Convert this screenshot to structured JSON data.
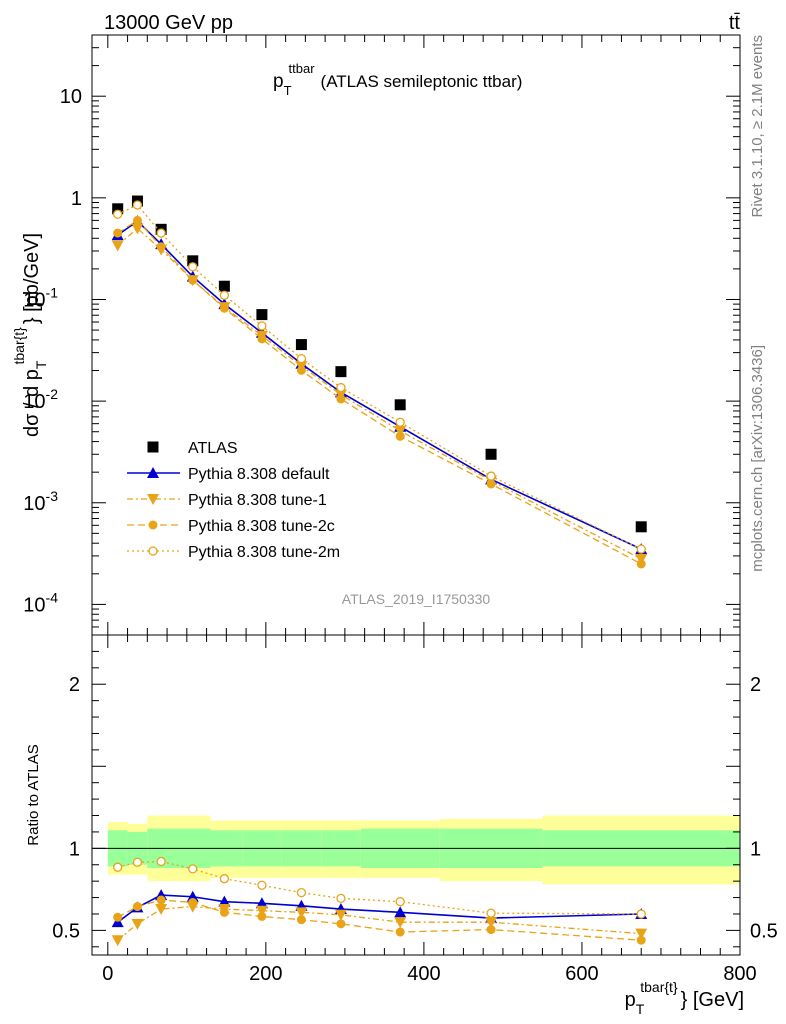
{
  "header": {
    "energy_label": "13000 GeV pp",
    "process_label": "tt̄"
  },
  "title": {
    "main": "p",
    "sub": "T",
    "sup": "ttbar",
    "rest": "(ATLAS semileptonic ttbar)"
  },
  "side_labels": {
    "rivet": "Rivet 3.1.10, ≥ 2.1M events",
    "mcplots": "mcplots.cern.ch [arXiv:1306.3436]"
  },
  "watermark": "ATLAS_2019_I1750330",
  "colors": {
    "data": "#000000",
    "default": "#0000d0",
    "tune": "#e8a317",
    "band_inner": "#99ff99",
    "band_outer": "#ffff99"
  },
  "chart_data": [
    {
      "type": "scatter",
      "panel": "main",
      "ylabel_parts": {
        "a": "dσ / d p",
        "sub": "T",
        "sup": "tbar{t}",
        "b": "} [pb/GeV]"
      },
      "ylabel": "dσ / d pT^tbar{t}} [pb/GeV]",
      "yscale": "log",
      "ylim": [
        5e-05,
        40
      ],
      "xlim": [
        -20,
        800
      ],
      "ytick_labels": [
        "10^-4",
        "10^-3",
        "10^-2",
        "10^-1",
        "1",
        "10"
      ],
      "legend_position": "center-left",
      "x": [
        12.5,
        37.5,
        67.5,
        107.5,
        147.5,
        195,
        245,
        295,
        370,
        485,
        675
      ],
      "series": [
        {
          "name": "ATLAS",
          "style": "data",
          "marker": "square",
          "values": [
            0.78,
            0.93,
            0.49,
            0.24,
            0.135,
            0.071,
            0.036,
            0.0195,
            0.0092,
            0.003,
            0.00058
          ]
        },
        {
          "name": "Pythia 8.308 default",
          "style": "default",
          "marker": "triangle-up",
          "values": [
            0.43,
            0.59,
            0.35,
            0.168,
            0.09,
            0.047,
            0.0233,
            0.0122,
            0.0056,
            0.0017,
            0.00035
          ]
        },
        {
          "name": "Pythia 8.308 tune-1",
          "style": "tune1",
          "marker": "triangle-down",
          "values": [
            0.34,
            0.5,
            0.31,
            0.155,
            0.084,
            0.044,
            0.0221,
            0.0116,
            0.0051,
            0.00165,
            0.00028
          ]
        },
        {
          "name": "Pythia 8.308 tune-2c",
          "style": "tune2c",
          "marker": "circle",
          "values": [
            0.45,
            0.6,
            0.33,
            0.155,
            0.082,
            0.041,
            0.0201,
            0.0105,
            0.0045,
            0.00153,
            0.00025
          ]
        },
        {
          "name": "Pythia 8.308 tune-2m",
          "style": "tune2m",
          "marker": "open-circle",
          "values": [
            0.69,
            0.85,
            0.45,
            0.21,
            0.11,
            0.055,
            0.0262,
            0.0136,
            0.0062,
            0.00183,
            0.00035
          ]
        }
      ]
    },
    {
      "type": "line",
      "panel": "ratio",
      "ylabel": "Ratio to ATLAS",
      "xlabel_parts": {
        "a": "p",
        "sub": "T",
        "sup": "tbar{t}",
        "b": "} [GeV]"
      },
      "xlabel": "pT^tbar{t}} [GeV]",
      "ylim": [
        0.35,
        2.3
      ],
      "xlim": [
        -20,
        800
      ],
      "x_ticks": [
        0,
        200,
        400,
        600,
        800
      ],
      "y_ticks": [
        0.5,
        1,
        2
      ],
      "reference_line": 1,
      "bands": {
        "edges": [
          0,
          25,
          50,
          85,
          130,
          170,
          220,
          270,
          320,
          420,
          550,
          800
        ],
        "inner": [
          [
            0.89,
            1.11
          ],
          [
            0.9,
            1.1
          ],
          [
            0.88,
            1.12
          ],
          [
            0.88,
            1.12
          ],
          [
            0.89,
            1.11
          ],
          [
            0.89,
            1.11
          ],
          [
            0.89,
            1.11
          ],
          [
            0.89,
            1.11
          ],
          [
            0.88,
            1.12
          ],
          [
            0.88,
            1.12
          ],
          [
            0.89,
            1.11
          ]
        ],
        "outer": [
          [
            0.84,
            1.16
          ],
          [
            0.84,
            1.15
          ],
          [
            0.8,
            1.2
          ],
          [
            0.8,
            1.2
          ],
          [
            0.82,
            1.17
          ],
          [
            0.82,
            1.17
          ],
          [
            0.82,
            1.17
          ],
          [
            0.82,
            1.17
          ],
          [
            0.82,
            1.17
          ],
          [
            0.8,
            1.18
          ],
          [
            0.78,
            1.2
          ]
        ]
      },
      "x": [
        12.5,
        37.5,
        67.5,
        107.5,
        147.5,
        195,
        245,
        295,
        370,
        485,
        675
      ],
      "series": [
        {
          "name": "Pythia 8.308 default",
          "style": "default",
          "marker": "triangle-up",
          "values": [
            0.55,
            0.64,
            0.715,
            0.705,
            0.675,
            0.665,
            0.65,
            0.63,
            0.61,
            0.575,
            0.6
          ]
        },
        {
          "name": "Pythia 8.308 tune-1",
          "style": "tune1",
          "marker": "triangle-down",
          "values": [
            0.44,
            0.54,
            0.63,
            0.645,
            0.63,
            0.62,
            0.61,
            0.595,
            0.55,
            0.55,
            0.48
          ]
        },
        {
          "name": "Pythia 8.308 tune-2c",
          "style": "tune2c",
          "marker": "circle",
          "values": [
            0.58,
            0.645,
            0.685,
            0.67,
            0.61,
            0.585,
            0.565,
            0.54,
            0.49,
            0.505,
            0.44
          ]
        },
        {
          "name": "Pythia 8.308 tune-2m",
          "style": "tune2m",
          "marker": "open-circle",
          "values": [
            0.885,
            0.915,
            0.92,
            0.875,
            0.815,
            0.775,
            0.73,
            0.695,
            0.675,
            0.605,
            0.6
          ]
        }
      ]
    }
  ]
}
